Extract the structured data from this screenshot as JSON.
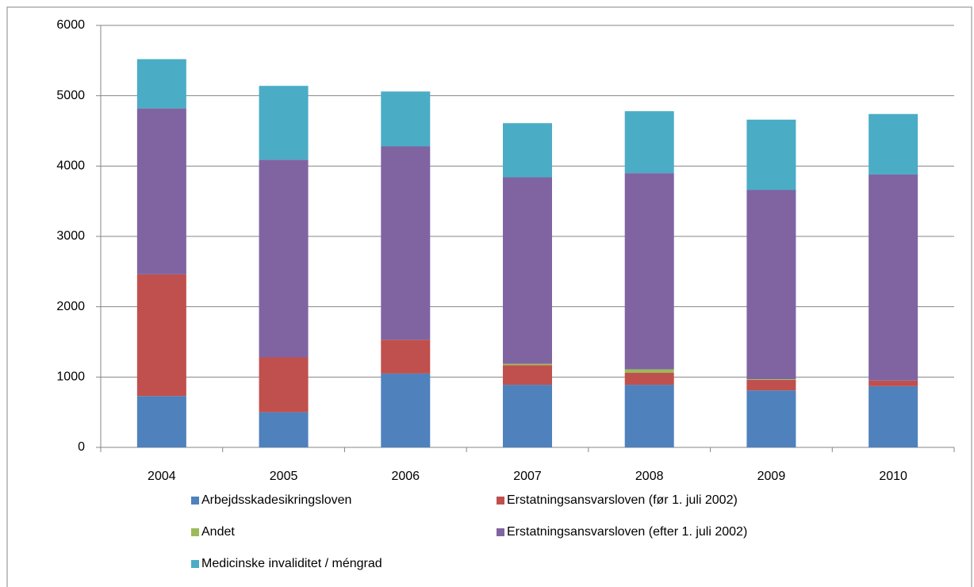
{
  "chart_data": {
    "type": "stacked_bar",
    "categories": [
      "2004",
      "2005",
      "2006",
      "2007",
      "2008",
      "2009",
      "2010"
    ],
    "series": [
      {
        "name": "Arbejdsskadesikringsloven",
        "color": "#4f81bd",
        "values": [
          730,
          500,
          1050,
          890,
          890,
          810,
          870
        ]
      },
      {
        "name": "Erstatningsansvarsloven (før 1. juli 2002)",
        "color": "#c0504d",
        "values": [
          1730,
          780,
          480,
          280,
          170,
          150,
          80
        ]
      },
      {
        "name": "Andet",
        "color": "#9bbb59",
        "values": [
          0,
          0,
          0,
          20,
          50,
          10,
          0
        ]
      },
      {
        "name": "Erstatningsansvarsloven (efter 1. juli 2002)",
        "color": "#8064a2",
        "values": [
          2360,
          2810,
          2750,
          2650,
          2790,
          2690,
          2930
        ]
      },
      {
        "name": "Medicinske invaliditet / méngrad",
        "color": "#4bacc6",
        "values": [
          700,
          1050,
          780,
          770,
          880,
          1000,
          860
        ]
      }
    ],
    "ylim": [
      0,
      6000
    ],
    "yticks": [
      0,
      1000,
      2000,
      3000,
      4000,
      5000,
      6000
    ],
    "grid": true
  }
}
